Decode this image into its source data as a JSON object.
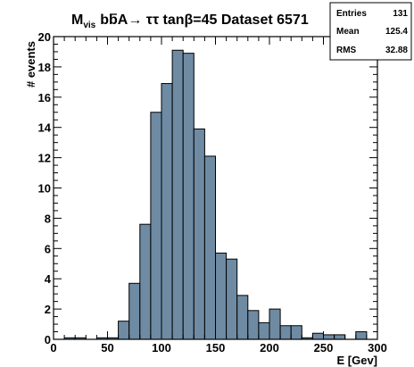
{
  "chart_data": {
    "type": "bar",
    "title": {
      "prefix": "M",
      "prefix_sub": "vis",
      "process_b": "b",
      "process_bbar": "b",
      "process_rest": "A→ ττ tanβ=45 Dataset 6571"
    },
    "xlabel": "E [Gev]",
    "ylabel": "# events",
    "xlim": [
      0,
      300
    ],
    "ylim": [
      0,
      20
    ],
    "x_ticks": [
      "0",
      "50",
      "100",
      "150",
      "200",
      "250",
      "300"
    ],
    "y_ticks": [
      "0",
      "2",
      "4",
      "6",
      "8",
      "10",
      "12",
      "14",
      "16",
      "18",
      "20"
    ],
    "bin_width": 10,
    "bin_edges_start": [
      0,
      10,
      20,
      30,
      40,
      50,
      60,
      70,
      80,
      90,
      100,
      110,
      120,
      130,
      140,
      150,
      160,
      170,
      180,
      190,
      200,
      210,
      220,
      230,
      240,
      250,
      260,
      270,
      280,
      290
    ],
    "values": [
      0,
      0.1,
      0.1,
      0,
      0.1,
      0.1,
      1.2,
      3.7,
      7.6,
      15,
      16.9,
      19.1,
      18.9,
      13.9,
      12.1,
      5.7,
      5.3,
      2.9,
      1.9,
      1.1,
      2.0,
      0.9,
      0.9,
      0.1,
      0.4,
      0.3,
      0.3,
      0,
      0.5,
      0
    ],
    "fill_color": "#6e8ba3",
    "stats": [
      {
        "label": "Entries",
        "value": "131"
      },
      {
        "label": "Mean",
        "value": "125.4"
      },
      {
        "label": "RMS",
        "value": "32.88"
      }
    ]
  }
}
